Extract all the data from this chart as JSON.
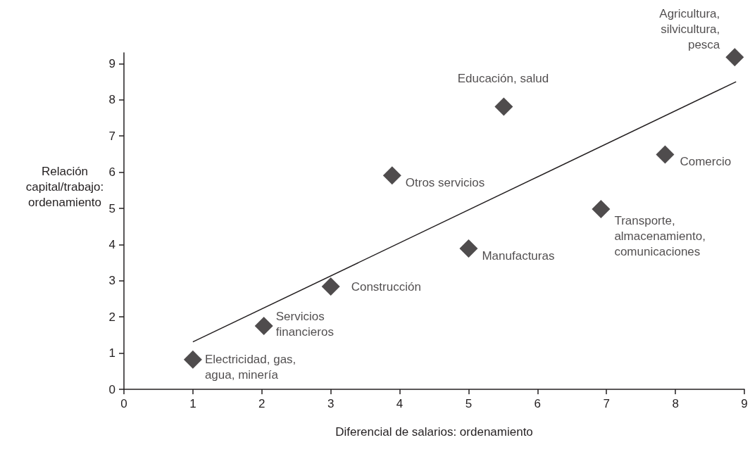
{
  "chart_data": {
    "type": "scatter",
    "xlabel": "Diferencial de salarios: ordenamiento",
    "ylabel": "Relación\ncapital/trabajo:\nordenamiento",
    "x": [
      1.0,
      2.03,
      3.0,
      3.89,
      5.0,
      5.51,
      6.92,
      7.85,
      8.86
    ],
    "series": [
      {
        "color": "#231f20",
        "marker": "diamond",
        "values": [
          0.82,
          1.75,
          2.84,
          5.91,
          3.89,
          7.81,
          4.98,
          6.49,
          9.18
        ]
      },
      {
        "type": "line",
        "color": "#231f20",
        "marker": "none",
        "line_style": "solid",
        "x": [
          1.0,
          8.88
        ],
        "values": [
          1.31,
          8.5
        ]
      }
    ],
    "annotations": [
      {
        "text": "Electricidad, gas,\nagua, minería",
        "x": 1.0,
        "y": 0.82
      },
      {
        "text": "Servicios\nfinancieros",
        "x": 2.03,
        "y": 1.75
      },
      {
        "text": "Construcción",
        "x": 3.0,
        "y": 2.84
      },
      {
        "text": "Otros servicios",
        "x": 3.89,
        "y": 5.91
      },
      {
        "text": "Manufacturas",
        "x": 5.0,
        "y": 3.89
      },
      {
        "text": "Educación, salud",
        "x": 5.51,
        "y": 7.81
      },
      {
        "text": "Transporte,\nalmacenamiento,\ncomunicaciones",
        "x": 6.92,
        "y": 4.98
      },
      {
        "text": "Comercio",
        "x": 7.85,
        "y": 6.49
      },
      {
        "text": "Agricultura,\nsilvicultura,\npesca",
        "x": 8.86,
        "y": 9.18
      }
    ],
    "xlim": [
      0,
      9
    ],
    "xticks": [
      0,
      1,
      2,
      3,
      4,
      5,
      6,
      7,
      8,
      9
    ],
    "ylim": [
      0,
      9.3
    ],
    "yticks": [
      0,
      1,
      2,
      3,
      4,
      5,
      6,
      7,
      8,
      9
    ],
    "grid": false
  }
}
